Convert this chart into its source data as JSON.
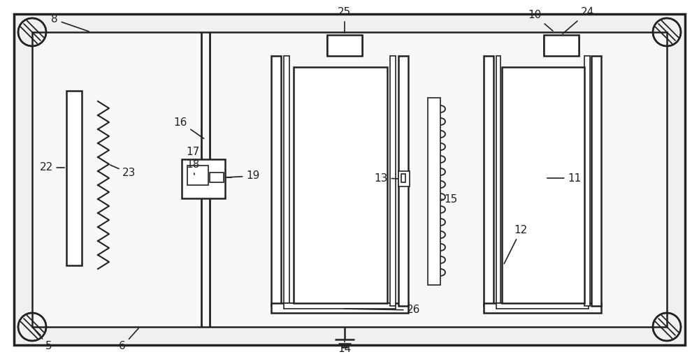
{
  "bg_color": "#ffffff",
  "line_color": "#222222",
  "lw_outer": 2.5,
  "lw_main": 1.8,
  "lw_thin": 1.2,
  "fig_width": 10.0,
  "fig_height": 5.14,
  "dpi": 100
}
